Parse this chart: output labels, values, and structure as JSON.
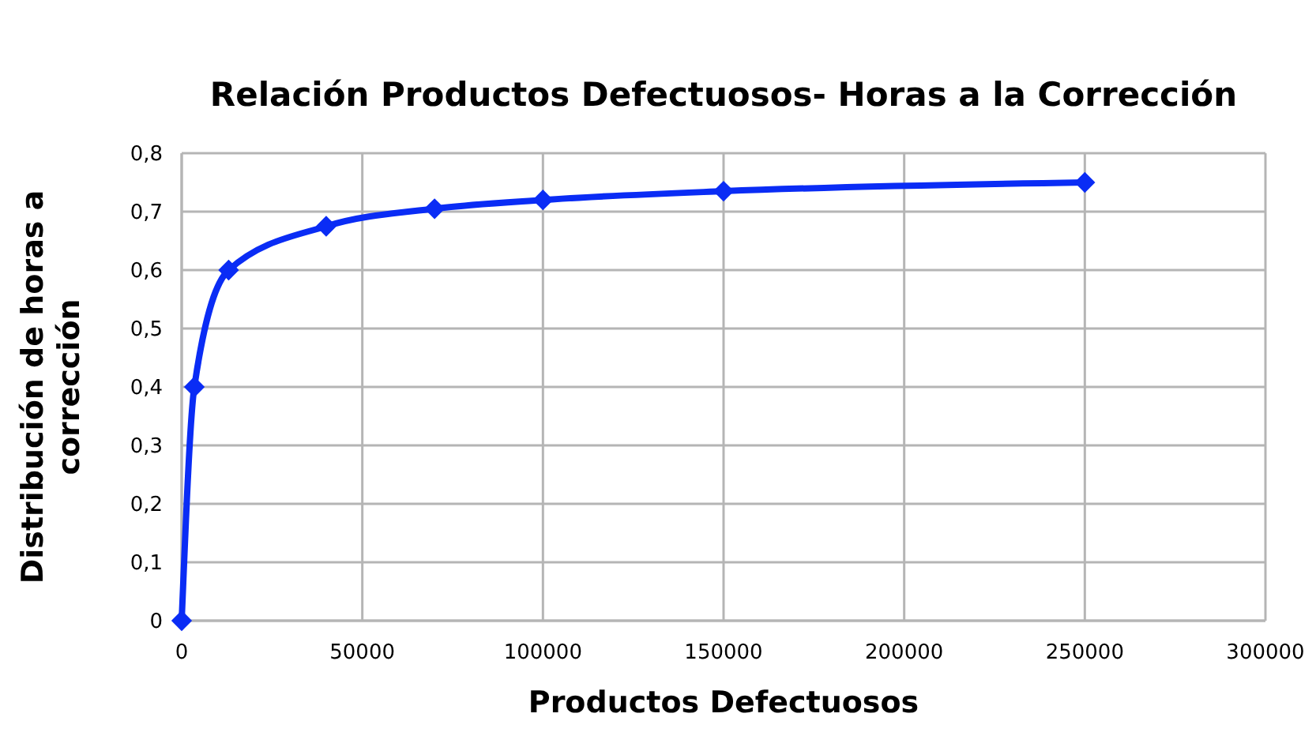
{
  "chart_data": {
    "type": "line",
    "title": "Relación Productos Defectuosos- Horas a la Corrección",
    "xlabel": "Productos Defectuosos",
    "ylabel": "Distribución de horas a corrección",
    "x": [
      0,
      3500,
      13000,
      40000,
      70000,
      100000,
      150000,
      250000
    ],
    "series": [
      {
        "color": "#0a2cf5",
        "values": [
          0,
          0.4,
          0.6,
          0.675,
          0.705,
          0.72,
          0.735,
          0.75
        ]
      }
    ],
    "xlim": [
      0,
      300000
    ],
    "xticks": [
      0,
      50000,
      100000,
      150000,
      200000,
      250000,
      300000
    ],
    "ylim": [
      0,
      0.8
    ],
    "yticks": [
      {
        "value": 0,
        "label": "0"
      },
      {
        "value": 0.1,
        "label": "0,1"
      },
      {
        "value": 0.2,
        "label": "0,2"
      },
      {
        "value": 0.3,
        "label": "0,3"
      },
      {
        "value": 0.4,
        "label": "0,4"
      },
      {
        "value": 0.5,
        "label": "0,5"
      },
      {
        "value": 0.6,
        "label": "0,6"
      },
      {
        "value": 0.7,
        "label": "0,7"
      },
      {
        "value": 0.8,
        "label": "0,8"
      }
    ],
    "grid": true,
    "marker": "diamond",
    "line_style": "solid"
  }
}
